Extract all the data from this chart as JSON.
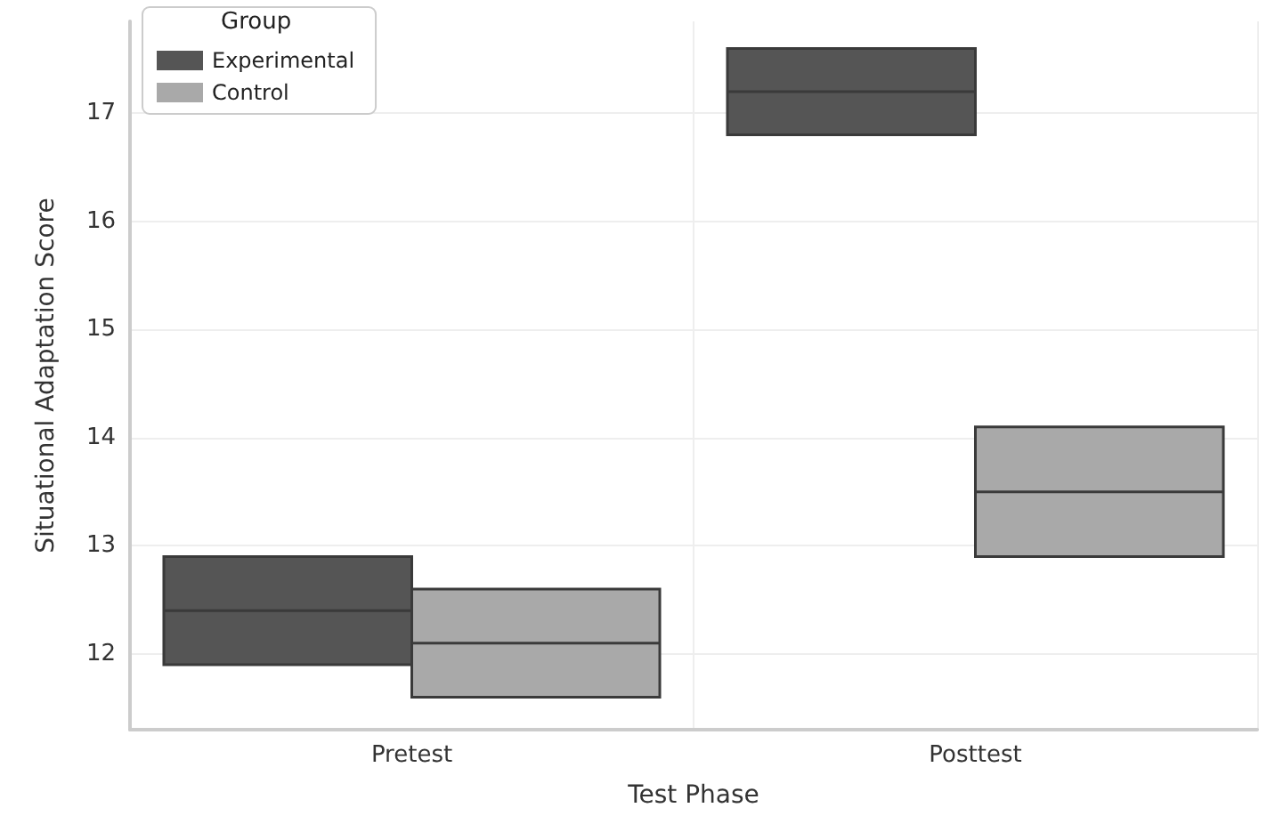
{
  "chart_data": {
    "type": "box",
    "xlabel": "Test Phase",
    "ylabel": "Situational Adaptation Score",
    "legend_title": "Group",
    "categories": [
      "Pretest",
      "Posttest"
    ],
    "series": [
      {
        "name": "Experimental",
        "color": "#555555",
        "boxes": [
          {
            "low": 11.9,
            "q1": 11.9,
            "median": 12.4,
            "q3": 12.9,
            "high": 12.9
          },
          {
            "low": 16.8,
            "q1": 16.8,
            "median": 17.2,
            "q3": 17.6,
            "high": 17.6
          }
        ]
      },
      {
        "name": "Control",
        "color": "#a9a9a9",
        "boxes": [
          {
            "low": 11.6,
            "q1": 11.6,
            "median": 12.1,
            "q3": 12.6,
            "high": 12.6
          },
          {
            "low": 12.9,
            "q1": 12.9,
            "median": 13.5,
            "q3": 14.1,
            "high": 14.1
          }
        ]
      }
    ],
    "ylim": [
      11.3,
      17.85
    ],
    "yticks": [
      12,
      13,
      14,
      15,
      16,
      17
    ],
    "grid": true,
    "legend": "top left"
  }
}
